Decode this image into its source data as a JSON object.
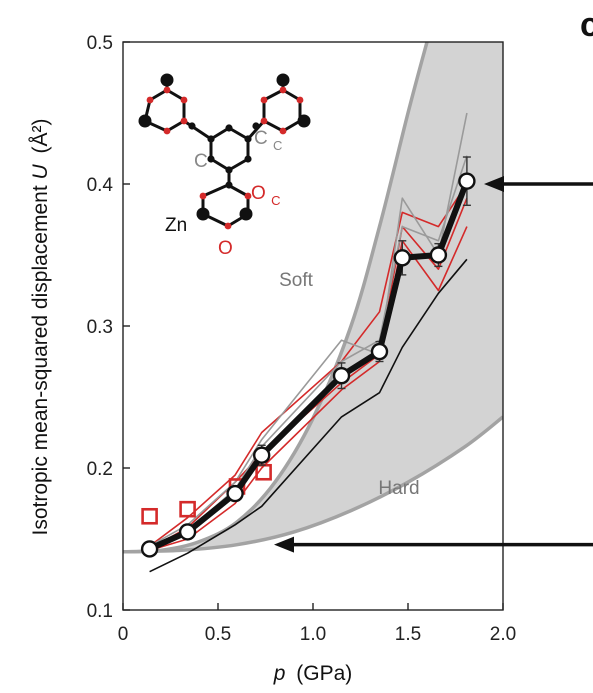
{
  "panel_letter": "c",
  "chart_data": {
    "type": "line",
    "xlabel_italic": "p",
    "xlabel_unit": "(GPa)",
    "ylabel_main": "Isotropic mean-squared displacement ",
    "ylabel_italic": "U",
    "ylabel_unit": "(Å²)",
    "xlim": [
      0,
      2.0
    ],
    "ylim": [
      0.1,
      0.5
    ],
    "x_ticks": [
      {
        "value": 0,
        "label": "0"
      },
      {
        "value": 0.5,
        "label": "0.5"
      },
      {
        "value": 1.0,
        "label": "1.0"
      },
      {
        "value": 1.5,
        "label": "1.5"
      },
      {
        "value": 2.0,
        "label": "2.0"
      }
    ],
    "y_ticks": [
      {
        "value": 0.1,
        "label": "0.1"
      },
      {
        "value": 0.2,
        "label": "0.2"
      },
      {
        "value": 0.3,
        "label": "0.3"
      },
      {
        "value": 0.4,
        "label": "0.4"
      },
      {
        "value": 0.5,
        "label": "0.5"
      }
    ],
    "regions": {
      "soft_label": "Soft",
      "hard_label": "Hard",
      "soft_boundary": [
        [
          0,
          0.141
        ],
        [
          0.2,
          0.142
        ],
        [
          0.4,
          0.148
        ],
        [
          0.6,
          0.162
        ],
        [
          0.8,
          0.19
        ],
        [
          1.0,
          0.235
        ],
        [
          1.2,
          0.3
        ],
        [
          1.35,
          0.37
        ],
        [
          1.5,
          0.45
        ],
        [
          1.6,
          0.5
        ]
      ],
      "hard_boundary": [
        [
          0,
          0.141
        ],
        [
          0.3,
          0.142
        ],
        [
          0.6,
          0.146
        ],
        [
          0.9,
          0.155
        ],
        [
          1.2,
          0.17
        ],
        [
          1.5,
          0.19
        ],
        [
          1.8,
          0.215
        ],
        [
          2.0,
          0.236
        ]
      ],
      "fill_color": "#d3d3d3",
      "boundary_color": "#a3a3a3"
    },
    "series": [
      {
        "style": "main",
        "color": "#111111",
        "x": [
          0.14,
          0.34,
          0.59,
          0.73,
          1.15,
          1.35,
          1.47,
          1.66,
          1.81
        ],
        "y": [
          0.143,
          0.155,
          0.182,
          0.209,
          0.265,
          0.282,
          0.348,
          0.35,
          0.402
        ],
        "err": [
          0.003,
          0.005,
          0.004,
          0.007,
          0.009,
          0.007,
          0.012,
          0.008,
          0.017
        ]
      },
      {
        "style": "thin",
        "color": "#d42a2a",
        "x": [
          0.14,
          0.34,
          0.59,
          0.73,
          1.15,
          1.35,
          1.47,
          1.66,
          1.81
        ],
        "y": [
          0.145,
          0.165,
          0.195,
          0.225,
          0.275,
          0.31,
          0.38,
          0.37,
          0.4
        ]
      },
      {
        "style": "thin",
        "color": "#d42a2a",
        "x": [
          0.14,
          0.34,
          0.59,
          0.73,
          1.15,
          1.35,
          1.47,
          1.66,
          1.81
        ],
        "y": [
          0.142,
          0.15,
          0.175,
          0.2,
          0.255,
          0.275,
          0.36,
          0.325,
          0.37
        ]
      },
      {
        "style": "thin",
        "color": "#d42a2a",
        "x": [
          0.14,
          0.34,
          0.59,
          0.73,
          1.15,
          1.35,
          1.47,
          1.66,
          1.81
        ],
        "y": [
          0.143,
          0.158,
          0.19,
          0.21,
          0.26,
          0.28,
          0.37,
          0.34,
          0.39
        ]
      },
      {
        "style": "thin",
        "color": "#9a9a9a",
        "x": [
          0.14,
          0.34,
          0.59,
          0.73,
          1.15,
          1.35,
          1.47,
          1.66,
          1.81
        ],
        "y": [
          0.145,
          0.16,
          0.19,
          0.22,
          0.29,
          0.28,
          0.39,
          0.35,
          0.45
        ]
      },
      {
        "style": "thin",
        "color": "#9a9a9a",
        "x": [
          0.14,
          0.34,
          0.59,
          0.73,
          1.15,
          1.35,
          1.47,
          1.66,
          1.81
        ],
        "y": [
          0.144,
          0.156,
          0.185,
          0.215,
          0.275,
          0.29,
          0.37,
          0.36,
          0.42
        ]
      },
      {
        "style": "thin",
        "color": "#111111",
        "x": [
          0.14,
          0.34,
          0.59,
          0.73,
          1.15,
          1.35,
          1.47,
          1.66,
          1.81
        ],
        "y": [
          0.127,
          0.14,
          0.16,
          0.173,
          0.236,
          0.253,
          0.285,
          0.323,
          0.347
        ]
      }
    ],
    "red_squares": {
      "color": "#d42a2a",
      "x": [
        0.14,
        0.34,
        0.6,
        0.74
      ],
      "y": [
        0.166,
        0.171,
        0.187,
        0.197
      ]
    },
    "arrows": [
      {
        "target_y": 0.4,
        "direction": "left"
      },
      {
        "target_y": 0.146,
        "direction": "left"
      }
    ]
  },
  "molecule": {
    "labels": {
      "c_plain": "C",
      "c_sub_main": "C",
      "c_sub": "C",
      "o_sub_main": "O",
      "o_sub": "C",
      "zn": "Zn",
      "o_plain": "O"
    },
    "colors": {
      "black": "#111111",
      "red": "#d42a2a",
      "gray": "#888888"
    }
  }
}
